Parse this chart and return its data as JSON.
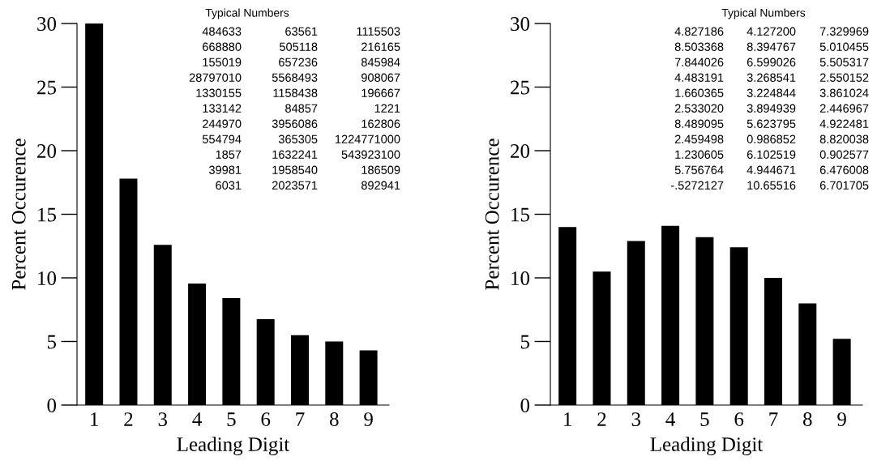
{
  "chart_data": [
    {
      "type": "bar",
      "categories": [
        "1",
        "2",
        "3",
        "4",
        "5",
        "6",
        "7",
        "8",
        "9"
      ],
      "values": [
        30,
        17.8,
        12.6,
        9.55,
        8.4,
        6.75,
        5.5,
        5.0,
        4.3
      ],
      "color": "#000000",
      "xlabel": "Leading Digit",
      "ylabel": "Percent Occurence",
      "ylim": [
        0,
        30
      ],
      "yticks": [
        0,
        5,
        10,
        15,
        20,
        25,
        30
      ],
      "grid": false,
      "legend": false,
      "annotations": [
        "Typical Numbers",
        "484633 63561 1115503",
        "668880 505118 216165",
        "155019 657236 845984",
        "28797010 5568493 908067",
        "1330155 1158438 196667",
        "133142 84857 1221",
        "244970 3956086 162806",
        "554794 365305 1224771000",
        "1857 1632241 543923100",
        "39981 1958540 186509",
        "6031 2023571 892941"
      ]
    },
    {
      "type": "bar",
      "categories": [
        "1",
        "2",
        "3",
        "4",
        "5",
        "6",
        "7",
        "8",
        "9"
      ],
      "values": [
        14.0,
        10.5,
        12.9,
        14.1,
        13.2,
        12.4,
        10.0,
        8.0,
        5.2
      ],
      "color": "#000000",
      "xlabel": "Leading Digit",
      "ylabel": "Percent Occurence",
      "ylim": [
        0,
        30
      ],
      "yticks": [
        0,
        5,
        10,
        15,
        20,
        25,
        30
      ],
      "grid": false,
      "legend": false,
      "annotations": [
        "Typical Numbers",
        "4.827186 4.127200 7.329969",
        "8.503368 8.394767 5.010455",
        "7.844026 6.599026 5.505317",
        "4.483191 3.268541 2.550152",
        "1.660365 3.224844 3.861024",
        "2.533020 3.894939 2.446967",
        "8.489095 5.623795 4.922481",
        "2.459498 0.986852 8.820038",
        "1.230605 6.102519 0.902577",
        "5.756764 4.944671 6.476008",
        "-.5272127 10.65516 6.701705"
      ]
    }
  ]
}
